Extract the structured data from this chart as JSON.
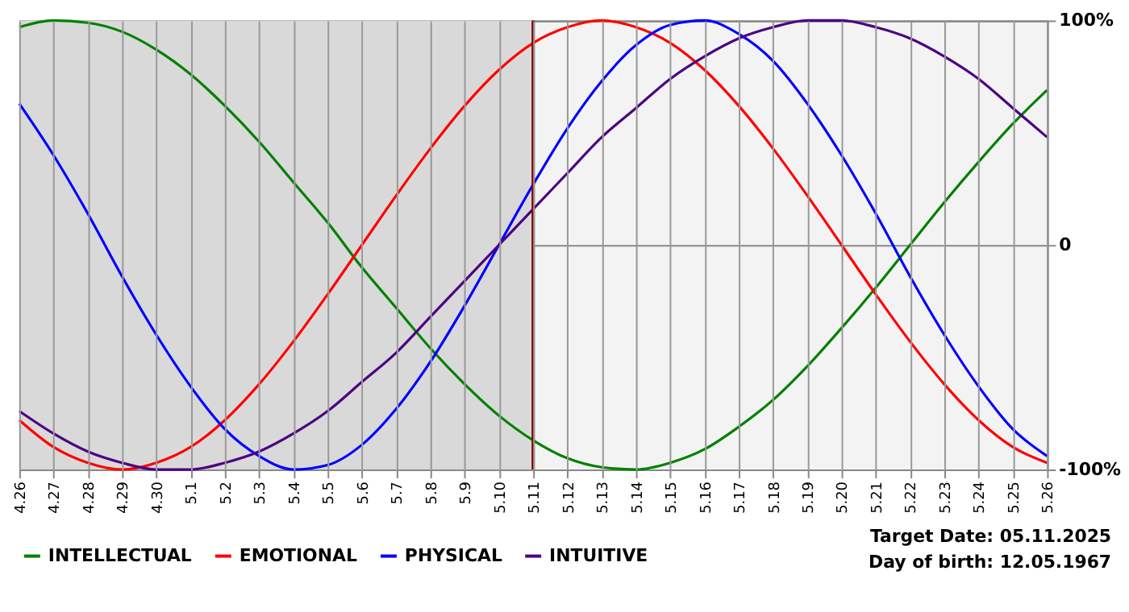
{
  "chart_data": {
    "type": "line",
    "categories": [
      "4.26",
      "4.27",
      "4.28",
      "4.29",
      "4.30",
      "5.1",
      "5.2",
      "5.3",
      "5.4",
      "5.5",
      "5.6",
      "5.7",
      "5.8",
      "5.9",
      "5.10",
      "5.11",
      "5.12",
      "5.13",
      "5.14",
      "5.15",
      "5.16",
      "5.17",
      "5.18",
      "5.19",
      "5.20",
      "5.21",
      "5.22",
      "5.23",
      "5.24",
      "5.25",
      "5.26"
    ],
    "series": [
      {
        "name": "INTELLECTUAL",
        "color": "#008000",
        "values": [
          97,
          100,
          99,
          95,
          87,
          76,
          62,
          46,
          28,
          10,
          -10,
          -28,
          -46,
          -62,
          -76,
          -87,
          -95,
          -99,
          -100,
          -97,
          -91,
          -81,
          -69,
          -54,
          -37,
          -19,
          0,
          19,
          37,
          54,
          69
        ]
      },
      {
        "name": "EMOTIONAL",
        "color": "#ff0000",
        "values": [
          -78,
          -90,
          -97,
          -100,
          -97,
          -90,
          -78,
          -62,
          -43,
          -22,
          0,
          22,
          43,
          62,
          78,
          90,
          97,
          100,
          97,
          90,
          78,
          62,
          43,
          22,
          0,
          -22,
          -43,
          -62,
          -78,
          -90,
          -97
        ]
      },
      {
        "name": "PHYSICAL",
        "color": "#0000ff",
        "values": [
          63,
          40,
          14,
          -14,
          -40,
          -63,
          -82,
          -94,
          -100,
          -98,
          -89,
          -73,
          -52,
          -27,
          0,
          27,
          52,
          73,
          89,
          98,
          100,
          94,
          82,
          63,
          40,
          14,
          -14,
          -40,
          -63,
          -82,
          -94
        ]
      },
      {
        "name": "INTUITIVE",
        "color": "#4b0082",
        "values": [
          -74,
          -84,
          -92,
          -97,
          -100,
          -100,
          -97,
          -92,
          -84,
          -74,
          -61,
          -48,
          -32,
          -16,
          0,
          16,
          32,
          48,
          61,
          74,
          84,
          92,
          97,
          100,
          100,
          97,
          92,
          84,
          74,
          61,
          48
        ]
      }
    ],
    "ylim": [
      -100,
      100
    ],
    "yticks": [
      {
        "value": 100,
        "label": "100%"
      },
      0,
      {
        "value": -100,
        "label": "-100%"
      }
    ],
    "ref_lines": [
      {
        "axis": "x",
        "value": "5.11",
        "color": "#800000"
      }
    ],
    "bands": [
      {
        "axis": "x",
        "from": "4.26",
        "to": "5.11",
        "color": "#d9d9d9"
      }
    ],
    "annotations": [
      "Target Date: 05.11.2025",
      "Day of birth: 12.05.1967"
    ],
    "grid": true,
    "legend": "bottom",
    "marker": "none",
    "line_style": "solid"
  }
}
